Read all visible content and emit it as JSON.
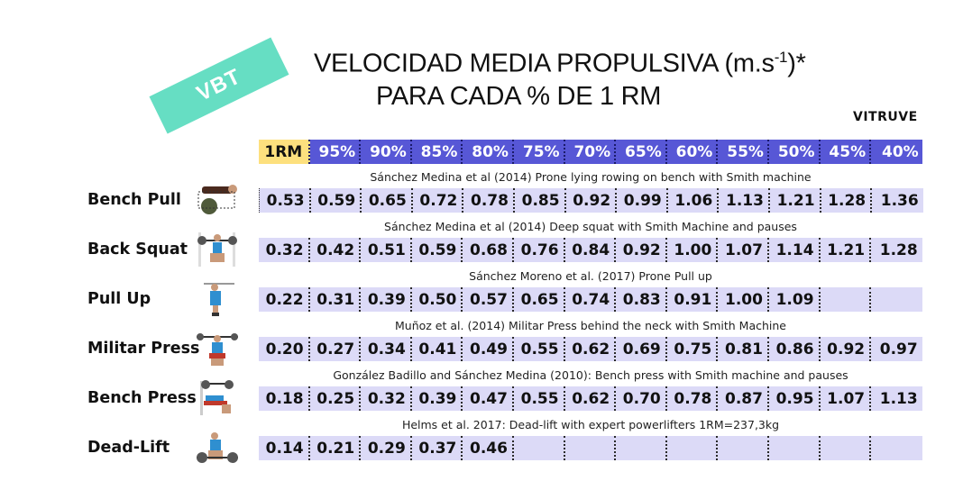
{
  "badge": {
    "label": "VBT",
    "color": "#66dec3"
  },
  "title": {
    "line1_main": "VELOCIDAD MEDIA PROPULSIVA (m.s",
    "line1_sup": "-1",
    "line1_end": ")*",
    "line2": "PARA CADA % DE 1 RM"
  },
  "brand": "VITRUVE",
  "colors": {
    "header_blue": "#5757d6",
    "header_1rm": "#fde07e",
    "row_fill": "#dcdaf7"
  },
  "header": [
    "1RM",
    "95%",
    "90%",
    "85%",
    "80%",
    "75%",
    "70%",
    "65%",
    "60%",
    "55%",
    "50%",
    "45%",
    "40%"
  ],
  "exercises": [
    {
      "name": "Bench Pull",
      "icon": "bench-pull-image",
      "citation": "Sánchez Medina et al (2014) Prone lying rowing on bench with Smith machine",
      "values": [
        "0.53",
        "0.59",
        "0.65",
        "0.72",
        "0.78",
        "0.85",
        "0.92",
        "0.99",
        "1.06",
        "1.13",
        "1.21",
        "1.28",
        "1.36"
      ]
    },
    {
      "name": "Back Squat",
      "icon": "back-squat-image",
      "citation": "Sánchez Medina et al (2014) Deep squat with Smith Machine and pauses",
      "values": [
        "0.32",
        "0.42",
        "0.51",
        "0.59",
        "0.68",
        "0.76",
        "0.84",
        "0.92",
        "1.00",
        "1.07",
        "1.14",
        "1.21",
        "1.28"
      ]
    },
    {
      "name": "Pull Up",
      "icon": "pull-up-image",
      "citation": "Sánchez Moreno et al. (2017) Prone Pull up",
      "values": [
        "0.22",
        "0.31",
        "0.39",
        "0.50",
        "0.57",
        "0.65",
        "0.74",
        "0.83",
        "0.91",
        "1.00",
        "1.09",
        "",
        ""
      ]
    },
    {
      "name": "Militar Press",
      "icon": "militar-press-image",
      "citation": "Muñoz et al. (2014) Militar Press behind the neck with Smith Machine",
      "values": [
        "0.20",
        "0.27",
        "0.34",
        "0.41",
        "0.49",
        "0.55",
        "0.62",
        "0.69",
        "0.75",
        "0.81",
        "0.86",
        "0.92",
        "0.97"
      ]
    },
    {
      "name": "Bench Press",
      "icon": "bench-press-image",
      "citation": "González Badillo and Sánchez Medina (2010): Bench press with Smith machine and pauses",
      "values": [
        "0.18",
        "0.25",
        "0.32",
        "0.39",
        "0.47",
        "0.55",
        "0.62",
        "0.70",
        "0.78",
        "0.87",
        "0.95",
        "1.07",
        "1.13"
      ]
    },
    {
      "name": "Dead-Lift",
      "icon": "dead-lift-image",
      "citation": "Helms et al. 2017: Dead-lift with expert powerlifters 1RM=237,3kg",
      "values": [
        "0.14",
        "0.21",
        "0.29",
        "0.37",
        "0.46",
        "",
        "",
        "",
        "",
        "",
        "",
        "",
        ""
      ]
    }
  ]
}
